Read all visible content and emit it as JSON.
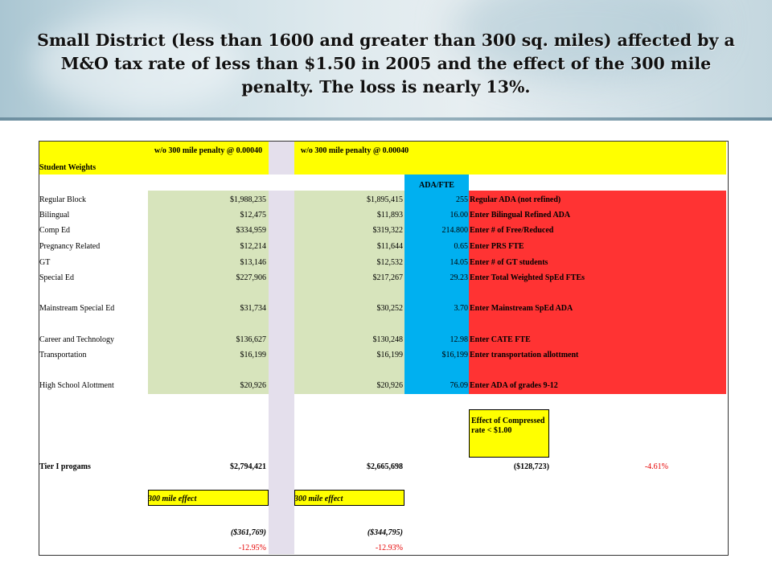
{
  "title": "Small District (less than 1600 and greater than 300 sq. miles) affected by a M&O tax rate of less than $1.50 in 2005 and the effect of the 300 mile penalty. The loss is nearly 13%.",
  "table": {
    "header": {
      "student_weights": "Student Weights",
      "col1": "w/o 300 mile penalty @ 0.00040",
      "col2": "w/o 300 mile penalty @ 0.00040",
      "ada_fte": "ADA/FTE"
    },
    "rows": [
      {
        "label": "Regular Block",
        "v1": "$1,988,235",
        "v2": "$1,895,415",
        "ada": "255",
        "note": "Regular ADA (not refined)"
      },
      {
        "label": "Bilingual",
        "v1": "$12,475",
        "v2": "$11,893",
        "ada": "16.00",
        "note": "Enter Bilingual Refined ADA"
      },
      {
        "label": "Comp Ed",
        "v1": "$334,959",
        "v2": "$319,322",
        "ada": "214.800",
        "note": "Enter # of Free/Reduced"
      },
      {
        "label": "Pregnancy Related",
        "v1": "$12,214",
        "v2": "$11,644",
        "ada": "0.65",
        "note": "Enter PRS FTE"
      },
      {
        "label": "GT",
        "v1": "$13,146",
        "v2": "$12,532",
        "ada": "14.05",
        "note": "Enter # of GT students"
      },
      {
        "label": "Special Ed",
        "v1": "$227,906",
        "v2": "$217,267",
        "ada": "29.23",
        "note": "Enter Total Weighted SpEd FTEs"
      },
      {
        "label": "Mainstream Special Ed",
        "v1": "$31,734",
        "v2": "$30,252",
        "ada": "3.70",
        "note": "Enter Mainstream SpEd ADA"
      },
      {
        "label": "Career and Technology",
        "v1": "$136,627",
        "v2": "$130,248",
        "ada": "12.98",
        "note": "Enter CATE FTE"
      },
      {
        "label": "Transportation",
        "v1": "$16,199",
        "v2": "$16,199",
        "ada": "$16,199",
        "note": "Enter transportation allottment"
      },
      {
        "label": "High School Alottment",
        "v1": "$20,926",
        "v2": "$20,926",
        "ada": "76.09",
        "note": "Enter ADA of grades 9-12"
      }
    ],
    "effect_box": "Effect of Compressed rate < $1.00",
    "tier": {
      "label": "Tier I progams",
      "v1": "$2,794,421",
      "v2": "$2,665,698",
      "diff": "($128,723)",
      "pct": "-4.61%"
    },
    "mile_effect": {
      "label1": "300 mile effect",
      "label2": "300 mile effect",
      "v1": "($361,769)",
      "v2": "($344,795)",
      "pct1": "-12.95%",
      "pct2": "-12.93%"
    }
  },
  "colors": {
    "header_fill": "#ffff00",
    "value_fill": "#d7e4bc",
    "ada_fill": "#00b0f0",
    "input_note_fill": "#ff3333",
    "negative_pct": "#e60000"
  }
}
